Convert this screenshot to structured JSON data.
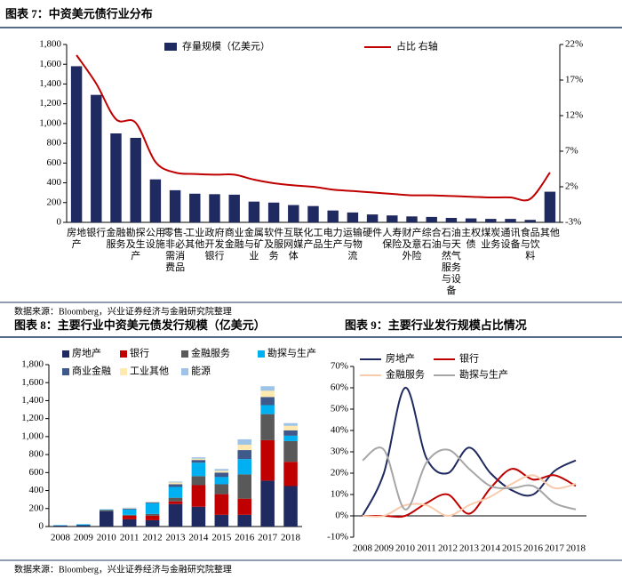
{
  "chart_data": [
    {
      "type": "bar_line",
      "title": "图表 7：中资美元债行业分布",
      "categories": [
        "房地产",
        "银行",
        "金融服务",
        "勘探及生产",
        "公用设施",
        "零售-非必需消费品",
        "工业其他",
        "政府开发银行",
        "商业金融",
        "金属与矿业",
        "软件及服务",
        "互联网媒体",
        "化工产品",
        "电力生产",
        "运输与物流",
        "硬件",
        "人寿保险",
        "财产及意外险",
        "综合石油",
        "石油与天然气服务与设备",
        "主权债",
        "煤炭业务",
        "通讯设备",
        "食品与饮料",
        "其他"
      ],
      "series": [
        {
          "name": "存量规模（亿美元）",
          "color": "#1f2a60",
          "values": [
            1580,
            1290,
            900,
            855,
            435,
            325,
            290,
            285,
            280,
            210,
            200,
            175,
            165,
            120,
            100,
            80,
            70,
            60,
            55,
            45,
            40,
            35,
            35,
            25,
            310
          ]
        },
        {
          "name": "占比 右轴",
          "color": "#c00000",
          "axis": "y2",
          "values": [
            20.5,
            16.5,
            11.5,
            11,
            5.5,
            4,
            3.8,
            3.7,
            3.7,
            3,
            2.5,
            2.2,
            2,
            1.6,
            1.4,
            1.2,
            1,
            0.8,
            0.8,
            0.7,
            0.6,
            0.5,
            0.5,
            0.3,
            4
          ]
        }
      ],
      "ylim": [
        0,
        1800
      ],
      "yticks": [
        0,
        200,
        400,
        600,
        800,
        {
          "value": 1000,
          "label": "1,000"
        },
        {
          "value": 1200,
          "label": "1,200"
        },
        {
          "value": 1400,
          "label": "1,400"
        },
        {
          "value": 1600,
          "label": "1,600"
        },
        {
          "value": 1800,
          "label": "1,800"
        }
      ],
      "y2lim": [
        -3,
        22
      ],
      "y2ticks": [
        {
          "value": -3,
          "label": "-3%"
        },
        {
          "value": 2,
          "label": "2%"
        },
        {
          "value": 7,
          "label": "7%"
        },
        {
          "value": 12,
          "label": "12%"
        },
        {
          "value": 17,
          "label": "17%"
        },
        {
          "value": 22,
          "label": "22%"
        }
      ],
      "source": "数据来源：Bloomberg，兴业证券经济与金融研究院整理"
    },
    {
      "type": "stacked_bar",
      "title": "图表 8：主要行业中资美元债发行规模（亿美元）",
      "categories": [
        "2008",
        "2009",
        "2010",
        "2011",
        "2012",
        "2013",
        "2014",
        "2015",
        "2016",
        "2017",
        "2018"
      ],
      "series": [
        {
          "name": "房地产",
          "color": "#1f2a60",
          "values": [
            10,
            15,
            170,
            80,
            70,
            250,
            220,
            130,
            130,
            510,
            450
          ]
        },
        {
          "name": "银行",
          "color": "#c00000",
          "values": [
            0,
            0,
            0,
            40,
            50,
            30,
            240,
            230,
            180,
            450,
            270
          ]
        },
        {
          "name": "金融服务",
          "color": "#595959",
          "values": [
            0,
            0,
            15,
            10,
            20,
            40,
            100,
            110,
            270,
            290,
            230
          ]
        },
        {
          "name": "勘探与生产",
          "color": "#00b0f0",
          "values": [
            5,
            10,
            5,
            60,
            120,
            120,
            150,
            80,
            170,
            100,
            60
          ]
        },
        {
          "name": "商业金融",
          "color": "#3f5a8a",
          "values": [
            0,
            0,
            0,
            10,
            10,
            30,
            30,
            50,
            100,
            90,
            60
          ]
        },
        {
          "name": "工业其他",
          "color": "#ffe9b0",
          "values": [
            0,
            0,
            0,
            5,
            5,
            20,
            15,
            20,
            60,
            70,
            50
          ]
        },
        {
          "name": "能源",
          "color": "#9dc3e6",
          "values": [
            0,
            0,
            0,
            5,
            0,
            10,
            15,
            20,
            60,
            50,
            30
          ]
        }
      ],
      "ylim": [
        0,
        1800
      ],
      "yticks": [
        0,
        200,
        400,
        600,
        800,
        {
          "value": 1000,
          "label": "1,000"
        },
        {
          "value": 1200,
          "label": "1,200"
        },
        {
          "value": 1400,
          "label": "1,400"
        },
        {
          "value": 1600,
          "label": "1,600"
        },
        {
          "value": 1800,
          "label": "1,800"
        }
      ],
      "source": "数据来源：Bloomberg，兴业证券经济与金融研究院整理"
    },
    {
      "type": "line",
      "title": "图表 9：主要行业发行规模占比情况",
      "categories": [
        "2008",
        "2009",
        "2010",
        "2011",
        "2012",
        "2013",
        "2014",
        "2015",
        "2016",
        "2017",
        "2018"
      ],
      "series": [
        {
          "name": "房地产",
          "color": "#1f2a60",
          "values": [
            0,
            20,
            60,
            27,
            20,
            32,
            20,
            12,
            10,
            21,
            26
          ]
        },
        {
          "name": "银行",
          "color": "#c00000",
          "values": [
            0,
            0,
            0,
            6,
            10,
            1,
            13,
            22,
            17,
            19,
            14
          ]
        },
        {
          "name": "金融服务",
          "color": "#f8cbad",
          "values": [
            0,
            0,
            5,
            5,
            0,
            5,
            9,
            15,
            19,
            13,
            15
          ]
        },
        {
          "name": "勘探与生产",
          "color": "#a6a6a6",
          "values": [
            26,
            31,
            3,
            25,
            31,
            22,
            14,
            13,
            14,
            6,
            3
          ]
        }
      ],
      "ylim": [
        -10,
        70
      ],
      "yticks": [
        {
          "value": -10,
          "label": "-10%"
        },
        {
          "value": 0,
          "label": "0%"
        },
        {
          "value": 10,
          "label": "10%"
        },
        {
          "value": 20,
          "label": "20%"
        },
        {
          "value": 30,
          "label": "30%"
        },
        {
          "value": 40,
          "label": "40%"
        },
        {
          "value": 50,
          "label": "50%"
        },
        {
          "value": 60,
          "label": "60%"
        },
        {
          "value": 70,
          "label": "70%"
        }
      ]
    }
  ]
}
